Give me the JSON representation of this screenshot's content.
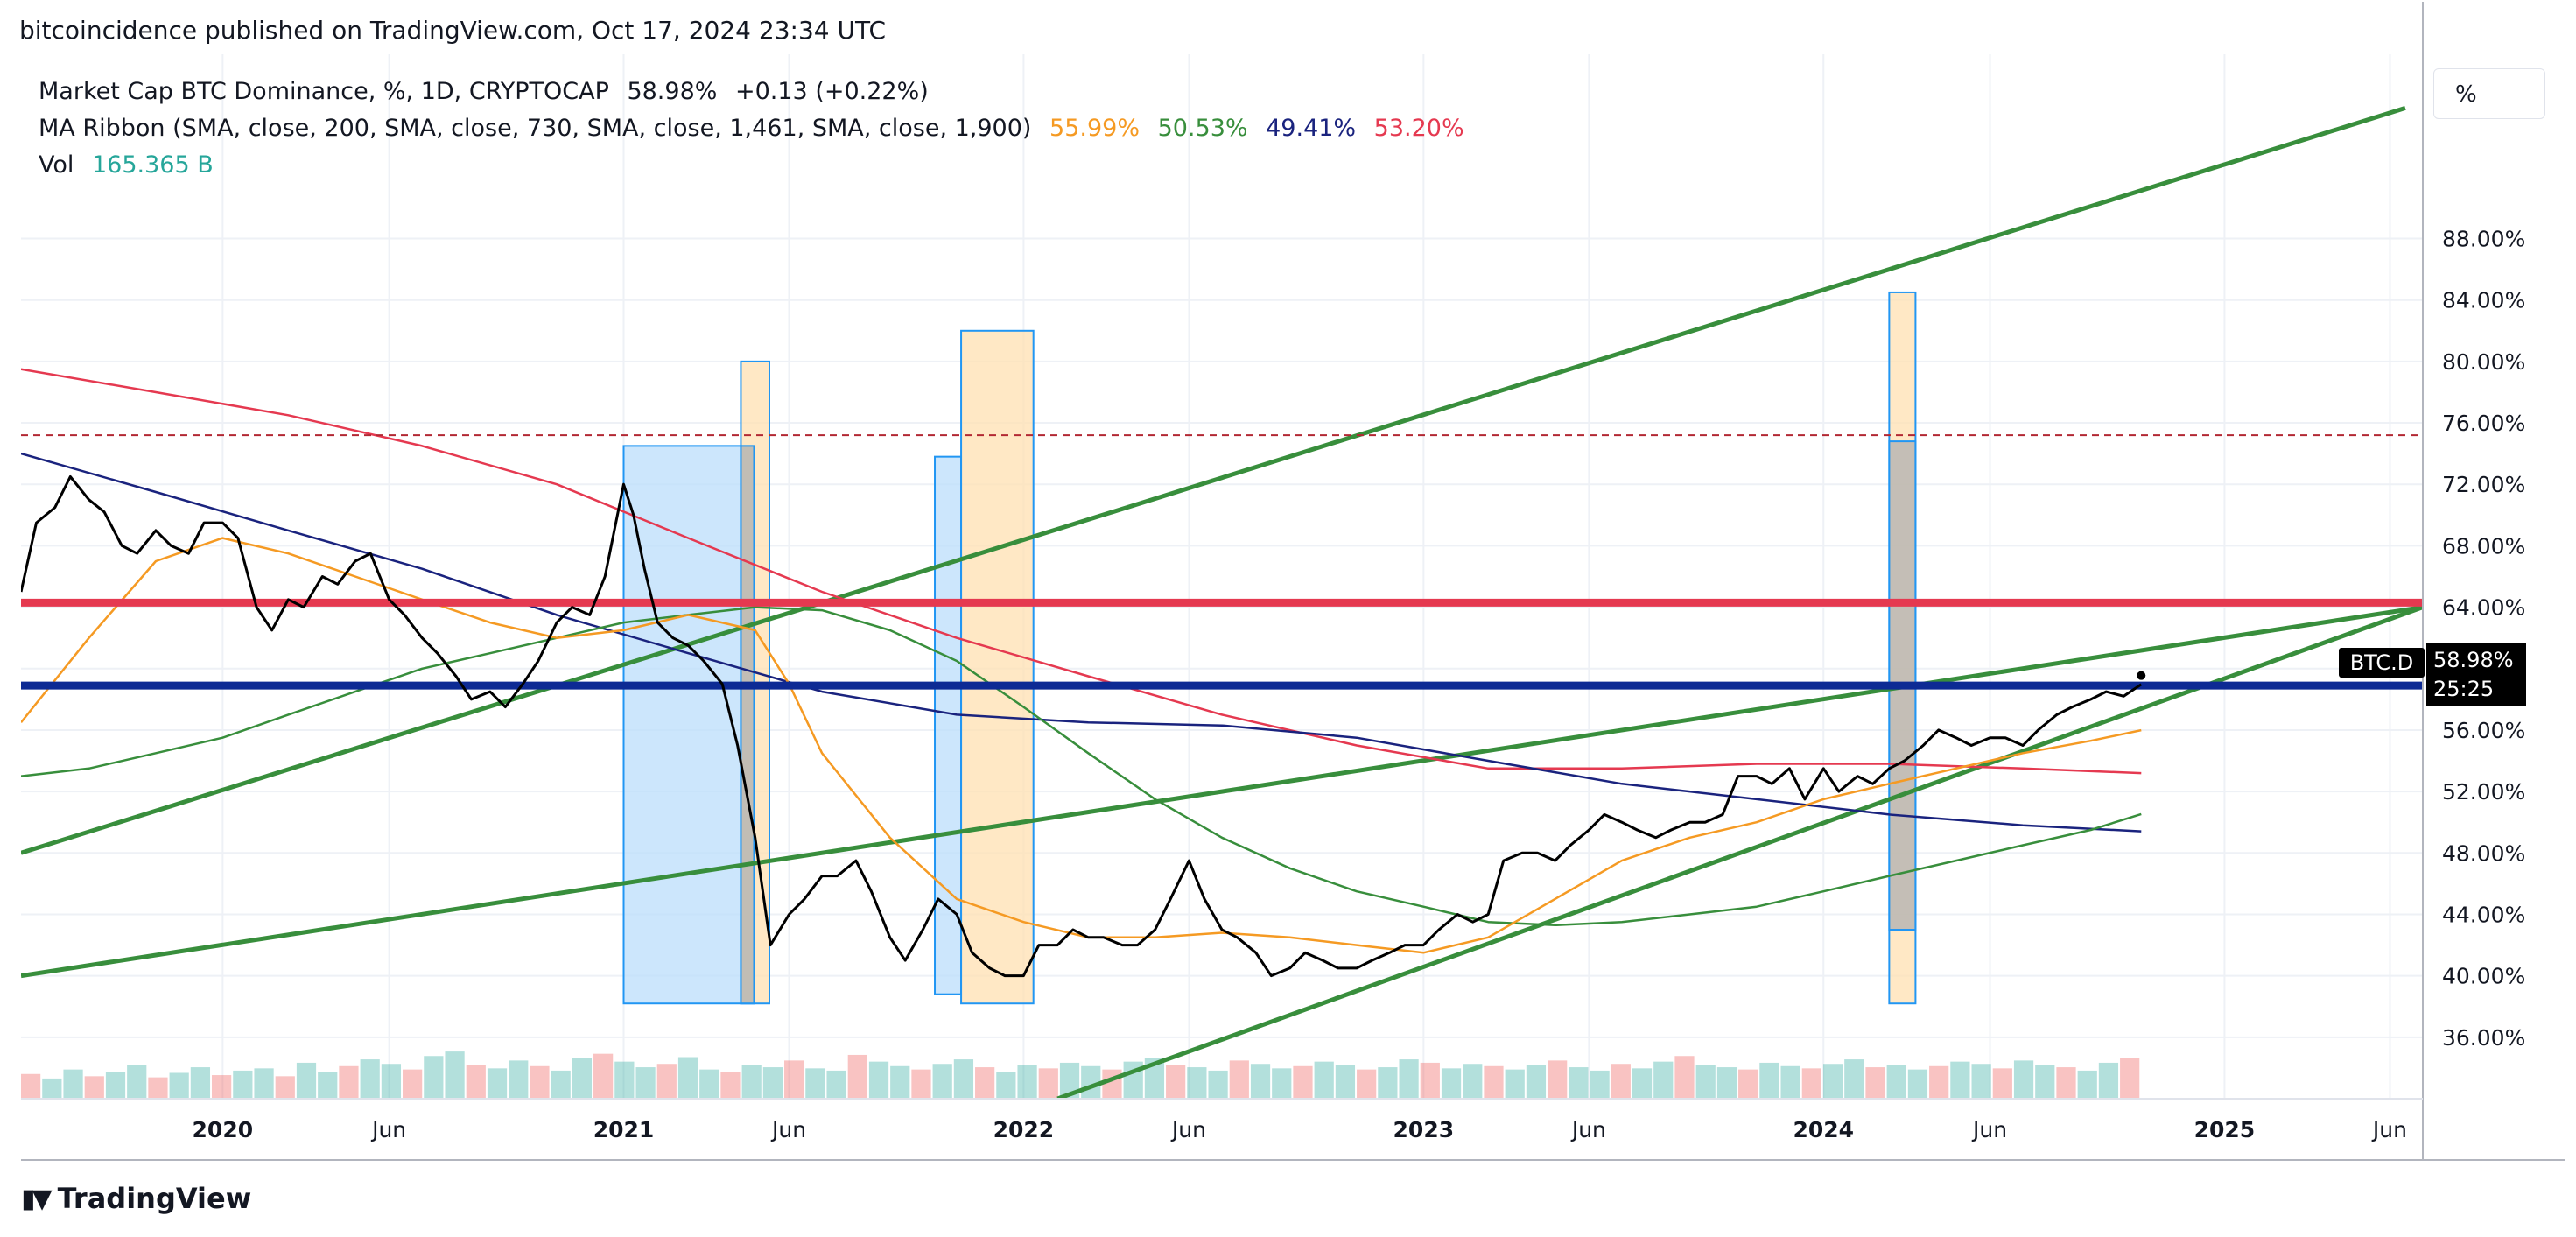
{
  "header": {
    "text": "bitcoincidence published on TradingView.com, Oct 17, 2024 23:34 UTC"
  },
  "legend": {
    "main_label": "Market Cap BTC Dominance, %, 1D, CRYPTOCAP",
    "main_value": "58.98%",
    "main_change": "+0.13 (+0.22%)",
    "ma_label": "MA Ribbon (SMA, close, 200, SMA, close, 730, SMA, close, 1,461, SMA, close, 1,900)",
    "ma_values": [
      "55.99%",
      "50.53%",
      "49.41%",
      "53.20%"
    ],
    "vol_label": "Vol",
    "vol_value": "165.365 B"
  },
  "scale_button": "%",
  "price_tag": {
    "symbol": "BTC.D",
    "value": "58.98%",
    "countdown": "25:25"
  },
  "brand": {
    "text": "TradingView"
  },
  "colors": {
    "price": "#000000",
    "sma200": "#f59a23",
    "sma730": "#388e3c",
    "sma1461": "#1a237e",
    "sma1900": "#e53950",
    "trend": "#388e3c",
    "support": "#0d2a94",
    "resistance": "#e53950",
    "dash": "#b22833",
    "vol_up": "#26a69a",
    "vol_down": "#ef5350",
    "grid": "#eef1f6",
    "box_blue": "#bbdefb",
    "box_orange": "#ffe0b2",
    "box_gray": "#b0b0b0"
  },
  "chart_data": {
    "type": "line",
    "x_type": "date",
    "xlim": [
      "2019-07-01",
      "2025-07-01"
    ],
    "ylim": [
      32,
      100
    ],
    "yticks": [
      36,
      40,
      44,
      48,
      52,
      56,
      60,
      64,
      68,
      72,
      76,
      80,
      84,
      88
    ],
    "ytick_labels": [
      "36.00%",
      "40.00%",
      "44.00%",
      "48.00%",
      "52.00%",
      "56.00%",
      "60.00%",
      "64.00%",
      "68.00%",
      "72.00%",
      "76.00%",
      "80.00%",
      "84.00%",
      "88.00%"
    ],
    "xticks": [
      {
        "label": "2020",
        "date": "2020-01-01"
      },
      {
        "label": "Jun",
        "date": "2020-06-01"
      },
      {
        "label": "2021",
        "date": "2021-01-01"
      },
      {
        "label": "Jun",
        "date": "2021-06-01"
      },
      {
        "label": "2022",
        "date": "2022-01-01"
      },
      {
        "label": "Jun",
        "date": "2022-06-01"
      },
      {
        "label": "2023",
        "date": "2023-01-01"
      },
      {
        "label": "Jun",
        "date": "2023-06-01"
      },
      {
        "label": "2024",
        "date": "2024-01-01"
      },
      {
        "label": "Jun",
        "date": "2024-06-01"
      },
      {
        "label": "2025",
        "date": "2025-01-01"
      },
      {
        "label": "Jun",
        "date": "2025-06-01"
      }
    ],
    "grid": true,
    "price": [
      [
        "2019-07-01",
        65.0
      ],
      [
        "2019-07-15",
        69.5
      ],
      [
        "2019-08-01",
        70.5
      ],
      [
        "2019-08-15",
        72.5
      ],
      [
        "2019-09-01",
        71.0
      ],
      [
        "2019-09-15",
        70.2
      ],
      [
        "2019-10-01",
        68.0
      ],
      [
        "2019-10-15",
        67.5
      ],
      [
        "2019-11-01",
        69.0
      ],
      [
        "2019-11-15",
        68.0
      ],
      [
        "2019-12-01",
        67.5
      ],
      [
        "2019-12-15",
        69.5
      ],
      [
        "2020-01-01",
        69.5
      ],
      [
        "2020-01-15",
        68.5
      ],
      [
        "2020-02-01",
        64.0
      ],
      [
        "2020-02-15",
        62.5
      ],
      [
        "2020-03-01",
        64.5
      ],
      [
        "2020-03-15",
        64.0
      ],
      [
        "2020-04-01",
        66.0
      ],
      [
        "2020-04-15",
        65.5
      ],
      [
        "2020-05-01",
        67.0
      ],
      [
        "2020-05-15",
        67.5
      ],
      [
        "2020-06-01",
        64.5
      ],
      [
        "2020-06-15",
        63.5
      ],
      [
        "2020-07-01",
        62.0
      ],
      [
        "2020-07-15",
        61.0
      ],
      [
        "2020-08-01",
        59.5
      ],
      [
        "2020-08-15",
        58.0
      ],
      [
        "2020-09-01",
        58.5
      ],
      [
        "2020-09-15",
        57.5
      ],
      [
        "2020-10-01",
        59.0
      ],
      [
        "2020-10-15",
        60.5
      ],
      [
        "2020-11-01",
        63.0
      ],
      [
        "2020-11-15",
        64.0
      ],
      [
        "2020-12-01",
        63.5
      ],
      [
        "2020-12-15",
        66.0
      ],
      [
        "2021-01-01",
        72.0
      ],
      [
        "2021-01-10",
        70.0
      ],
      [
        "2021-01-20",
        66.5
      ],
      [
        "2021-02-01",
        63.0
      ],
      [
        "2021-02-15",
        62.0
      ],
      [
        "2021-03-01",
        61.5
      ],
      [
        "2021-03-15",
        60.5
      ],
      [
        "2021-04-01",
        59.0
      ],
      [
        "2021-04-15",
        55.0
      ],
      [
        "2021-05-01",
        49.0
      ],
      [
        "2021-05-15",
        42.0
      ],
      [
        "2021-06-01",
        44.0
      ],
      [
        "2021-06-15",
        45.0
      ],
      [
        "2021-07-01",
        46.5
      ],
      [
        "2021-07-15",
        46.5
      ],
      [
        "2021-08-01",
        47.5
      ],
      [
        "2021-08-15",
        45.5
      ],
      [
        "2021-09-01",
        42.5
      ],
      [
        "2021-09-15",
        41.0
      ],
      [
        "2021-10-01",
        43.0
      ],
      [
        "2021-10-15",
        45.0
      ],
      [
        "2021-11-01",
        44.0
      ],
      [
        "2021-11-15",
        41.5
      ],
      [
        "2021-12-01",
        40.5
      ],
      [
        "2021-12-15",
        40.0
      ],
      [
        "2022-01-01",
        40.0
      ],
      [
        "2022-01-15",
        42.0
      ],
      [
        "2022-02-01",
        42.0
      ],
      [
        "2022-02-15",
        43.0
      ],
      [
        "2022-03-01",
        42.5
      ],
      [
        "2022-03-15",
        42.5
      ],
      [
        "2022-04-01",
        42.0
      ],
      [
        "2022-04-15",
        42.0
      ],
      [
        "2022-05-01",
        43.0
      ],
      [
        "2022-05-15",
        45.0
      ],
      [
        "2022-06-01",
        47.5
      ],
      [
        "2022-06-15",
        45.0
      ],
      [
        "2022-07-01",
        43.0
      ],
      [
        "2022-07-15",
        42.5
      ],
      [
        "2022-08-01",
        41.5
      ],
      [
        "2022-08-15",
        40.0
      ],
      [
        "2022-09-01",
        40.5
      ],
      [
        "2022-09-15",
        41.5
      ],
      [
        "2022-10-01",
        41.0
      ],
      [
        "2022-10-15",
        40.5
      ],
      [
        "2022-11-01",
        40.5
      ],
      [
        "2022-11-15",
        41.0
      ],
      [
        "2022-12-01",
        41.5
      ],
      [
        "2022-12-15",
        42.0
      ],
      [
        "2023-01-01",
        42.0
      ],
      [
        "2023-01-15",
        43.0
      ],
      [
        "2023-02-01",
        44.0
      ],
      [
        "2023-02-15",
        43.5
      ],
      [
        "2023-03-01",
        44.0
      ],
      [
        "2023-03-15",
        47.5
      ],
      [
        "2023-04-01",
        48.0
      ],
      [
        "2023-04-15",
        48.0
      ],
      [
        "2023-05-01",
        47.5
      ],
      [
        "2023-05-15",
        48.5
      ],
      [
        "2023-06-01",
        49.5
      ],
      [
        "2023-06-15",
        50.5
      ],
      [
        "2023-07-01",
        50.0
      ],
      [
        "2023-07-15",
        49.5
      ],
      [
        "2023-08-01",
        49.0
      ],
      [
        "2023-08-15",
        49.5
      ],
      [
        "2023-09-01",
        50.0
      ],
      [
        "2023-09-15",
        50.0
      ],
      [
        "2023-10-01",
        50.5
      ],
      [
        "2023-10-15",
        53.0
      ],
      [
        "2023-11-01",
        53.0
      ],
      [
        "2023-11-15",
        52.5
      ],
      [
        "2023-12-01",
        53.5
      ],
      [
        "2023-12-15",
        51.5
      ],
      [
        "2024-01-01",
        53.5
      ],
      [
        "2024-01-15",
        52.0
      ],
      [
        "2024-02-01",
        53.0
      ],
      [
        "2024-02-15",
        52.5
      ],
      [
        "2024-03-01",
        53.5
      ],
      [
        "2024-03-15",
        54.0
      ],
      [
        "2024-04-01",
        55.0
      ],
      [
        "2024-04-15",
        56.0
      ],
      [
        "2024-05-01",
        55.5
      ],
      [
        "2024-05-15",
        55.0
      ],
      [
        "2024-06-01",
        55.5
      ],
      [
        "2024-06-15",
        55.5
      ],
      [
        "2024-07-01",
        55.0
      ],
      [
        "2024-07-15",
        56.0
      ],
      [
        "2024-08-01",
        57.0
      ],
      [
        "2024-08-15",
        57.5
      ],
      [
        "2024-09-01",
        58.0
      ],
      [
        "2024-09-15",
        58.5
      ],
      [
        "2024-10-01",
        58.2
      ],
      [
        "2024-10-17",
        58.98
      ]
    ],
    "sma200": [
      [
        "2019-07-01",
        56.5
      ],
      [
        "2019-09-01",
        62.0
      ],
      [
        "2019-11-01",
        67.0
      ],
      [
        "2020-01-01",
        68.5
      ],
      [
        "2020-03-01",
        67.5
      ],
      [
        "2020-05-01",
        66.0
      ],
      [
        "2020-07-01",
        64.5
      ],
      [
        "2020-09-01",
        63.0
      ],
      [
        "2020-11-01",
        62.0
      ],
      [
        "2021-01-01",
        62.5
      ],
      [
        "2021-03-01",
        63.5
      ],
      [
        "2021-05-01",
        62.5
      ],
      [
        "2021-06-01",
        59.0
      ],
      [
        "2021-07-01",
        54.5
      ],
      [
        "2021-09-01",
        49.0
      ],
      [
        "2021-11-01",
        45.0
      ],
      [
        "2022-01-01",
        43.5
      ],
      [
        "2022-03-01",
        42.5
      ],
      [
        "2022-05-01",
        42.5
      ],
      [
        "2022-07-01",
        42.8
      ],
      [
        "2022-09-01",
        42.5
      ],
      [
        "2022-11-01",
        42.0
      ],
      [
        "2023-01-01",
        41.5
      ],
      [
        "2023-03-01",
        42.5
      ],
      [
        "2023-05-01",
        45.0
      ],
      [
        "2023-07-01",
        47.5
      ],
      [
        "2023-09-01",
        49.0
      ],
      [
        "2023-11-01",
        50.0
      ],
      [
        "2024-01-01",
        51.5
      ],
      [
        "2024-03-01",
        52.5
      ],
      [
        "2024-05-01",
        53.5
      ],
      [
        "2024-07-01",
        54.5
      ],
      [
        "2024-09-01",
        55.3
      ],
      [
        "2024-10-17",
        55.99
      ]
    ],
    "sma730": [
      [
        "2019-07-01",
        53.0
      ],
      [
        "2019-09-01",
        53.5
      ],
      [
        "2019-11-01",
        54.5
      ],
      [
        "2020-01-01",
        55.5
      ],
      [
        "2020-03-01",
        57.0
      ],
      [
        "2020-05-01",
        58.5
      ],
      [
        "2020-07-01",
        60.0
      ],
      [
        "2020-09-01",
        61.0
      ],
      [
        "2020-11-01",
        62.0
      ],
      [
        "2021-01-01",
        63.0
      ],
      [
        "2021-03-01",
        63.5
      ],
      [
        "2021-05-01",
        64.0
      ],
      [
        "2021-07-01",
        63.8
      ],
      [
        "2021-09-01",
        62.5
      ],
      [
        "2021-11-01",
        60.5
      ],
      [
        "2022-01-01",
        57.5
      ],
      [
        "2022-03-01",
        54.5
      ],
      [
        "2022-05-01",
        51.5
      ],
      [
        "2022-07-01",
        49.0
      ],
      [
        "2022-09-01",
        47.0
      ],
      [
        "2022-11-01",
        45.5
      ],
      [
        "2023-01-01",
        44.5
      ],
      [
        "2023-03-01",
        43.5
      ],
      [
        "2023-05-01",
        43.3
      ],
      [
        "2023-07-01",
        43.5
      ],
      [
        "2023-09-01",
        44.0
      ],
      [
        "2023-11-01",
        44.5
      ],
      [
        "2024-01-01",
        45.5
      ],
      [
        "2024-03-01",
        46.5
      ],
      [
        "2024-05-01",
        47.5
      ],
      [
        "2024-07-01",
        48.5
      ],
      [
        "2024-09-01",
        49.5
      ],
      [
        "2024-10-17",
        50.53
      ]
    ],
    "sma1461": [
      [
        "2019-07-01",
        74.0
      ],
      [
        "2019-11-01",
        71.5
      ],
      [
        "2020-03-01",
        69.0
      ],
      [
        "2020-07-01",
        66.5
      ],
      [
        "2020-11-01",
        63.5
      ],
      [
        "2021-03-01",
        61.0
      ],
      [
        "2021-07-01",
        58.5
      ],
      [
        "2021-11-01",
        57.0
      ],
      [
        "2022-03-01",
        56.5
      ],
      [
        "2022-07-01",
        56.3
      ],
      [
        "2022-11-01",
        55.5
      ],
      [
        "2023-03-01",
        54.0
      ],
      [
        "2023-07-01",
        52.5
      ],
      [
        "2023-11-01",
        51.5
      ],
      [
        "2024-03-01",
        50.5
      ],
      [
        "2024-07-01",
        49.8
      ],
      [
        "2024-10-17",
        49.41
      ]
    ],
    "sma1900": [
      [
        "2019-07-01",
        79.5
      ],
      [
        "2019-11-01",
        78.0
      ],
      [
        "2020-03-01",
        76.5
      ],
      [
        "2020-07-01",
        74.5
      ],
      [
        "2020-11-01",
        72.0
      ],
      [
        "2021-03-01",
        68.5
      ],
      [
        "2021-07-01",
        65.0
      ],
      [
        "2021-11-01",
        62.0
      ],
      [
        "2022-03-01",
        59.5
      ],
      [
        "2022-07-01",
        57.0
      ],
      [
        "2022-11-01",
        55.0
      ],
      [
        "2023-03-01",
        53.5
      ],
      [
        "2023-07-01",
        53.5
      ],
      [
        "2023-11-01",
        53.8
      ],
      [
        "2024-03-01",
        53.8
      ],
      [
        "2024-07-01",
        53.5
      ],
      [
        "2024-10-17",
        53.2
      ]
    ],
    "trend_lines": [
      {
        "x": [
          "2019-07-01",
          "2025-06-15"
        ],
        "y": [
          48.0,
          96.5
        ]
      },
      {
        "x": [
          "2019-07-01",
          "2025-07-01"
        ],
        "y": [
          40.0,
          64.0
        ]
      },
      {
        "x": [
          "2022-02-01",
          "2025-07-01"
        ],
        "y": [
          32.0,
          64.0
        ]
      }
    ],
    "h_lines": [
      {
        "y": 64.3,
        "style": "solid",
        "color": "resistance"
      },
      {
        "y": 58.9,
        "style": "solid",
        "color": "support"
      },
      {
        "y": 75.2,
        "style": "dashed",
        "color": "dash"
      }
    ],
    "boxes": [
      {
        "x0": "2021-01-01",
        "x1": "2021-04-30",
        "y0": 38.2,
        "y1": 74.5,
        "fill": "box_blue"
      },
      {
        "x0": "2021-04-18",
        "x1": "2021-05-14",
        "y0": 38.2,
        "y1": 80.0,
        "fill": "box_orange"
      },
      {
        "x0": "2021-04-18",
        "x1": "2021-04-30",
        "y0": 38.2,
        "y1": 74.5,
        "fill": "box_gray"
      },
      {
        "x0": "2021-10-12",
        "x1": "2021-11-05",
        "y0": 38.8,
        "y1": 73.8,
        "fill": "box_blue"
      },
      {
        "x0": "2021-11-05",
        "x1": "2022-01-10",
        "y0": 38.2,
        "y1": 82.0,
        "fill": "box_orange"
      },
      {
        "x0": "2024-03-01",
        "x1": "2024-03-25",
        "y0": 38.2,
        "y1": 84.5,
        "fill": "box_orange"
      },
      {
        "x0": "2024-03-01",
        "x1": "2024-03-25",
        "y0": 43.0,
        "y1": 74.8,
        "fill": "box_gray"
      }
    ],
    "volume": [
      22,
      18,
      26,
      20,
      24,
      30,
      19,
      23,
      28,
      21,
      25,
      27,
      20,
      32,
      24,
      29,
      35,
      31,
      26,
      38,
      42,
      30,
      27,
      34,
      29,
      25,
      36,
      40,
      33,
      28,
      31,
      37,
      26,
      24,
      30,
      28,
      34,
      27,
      25,
      39,
      33,
      29,
      26,
      31,
      35,
      28,
      24,
      30,
      27,
      32,
      29,
      26,
      33,
      36,
      30,
      28,
      25,
      34,
      31,
      27,
      29,
      33,
      30,
      26,
      28,
      35,
      32,
      27,
      31,
      29,
      26,
      30,
      34,
      28,
      25,
      31,
      27,
      33,
      38,
      30,
      28,
      26,
      32,
      29,
      27,
      31,
      35,
      28,
      30,
      26,
      29,
      33,
      31,
      27,
      34,
      30,
      28,
      25,
      32,
      36
    ]
  }
}
